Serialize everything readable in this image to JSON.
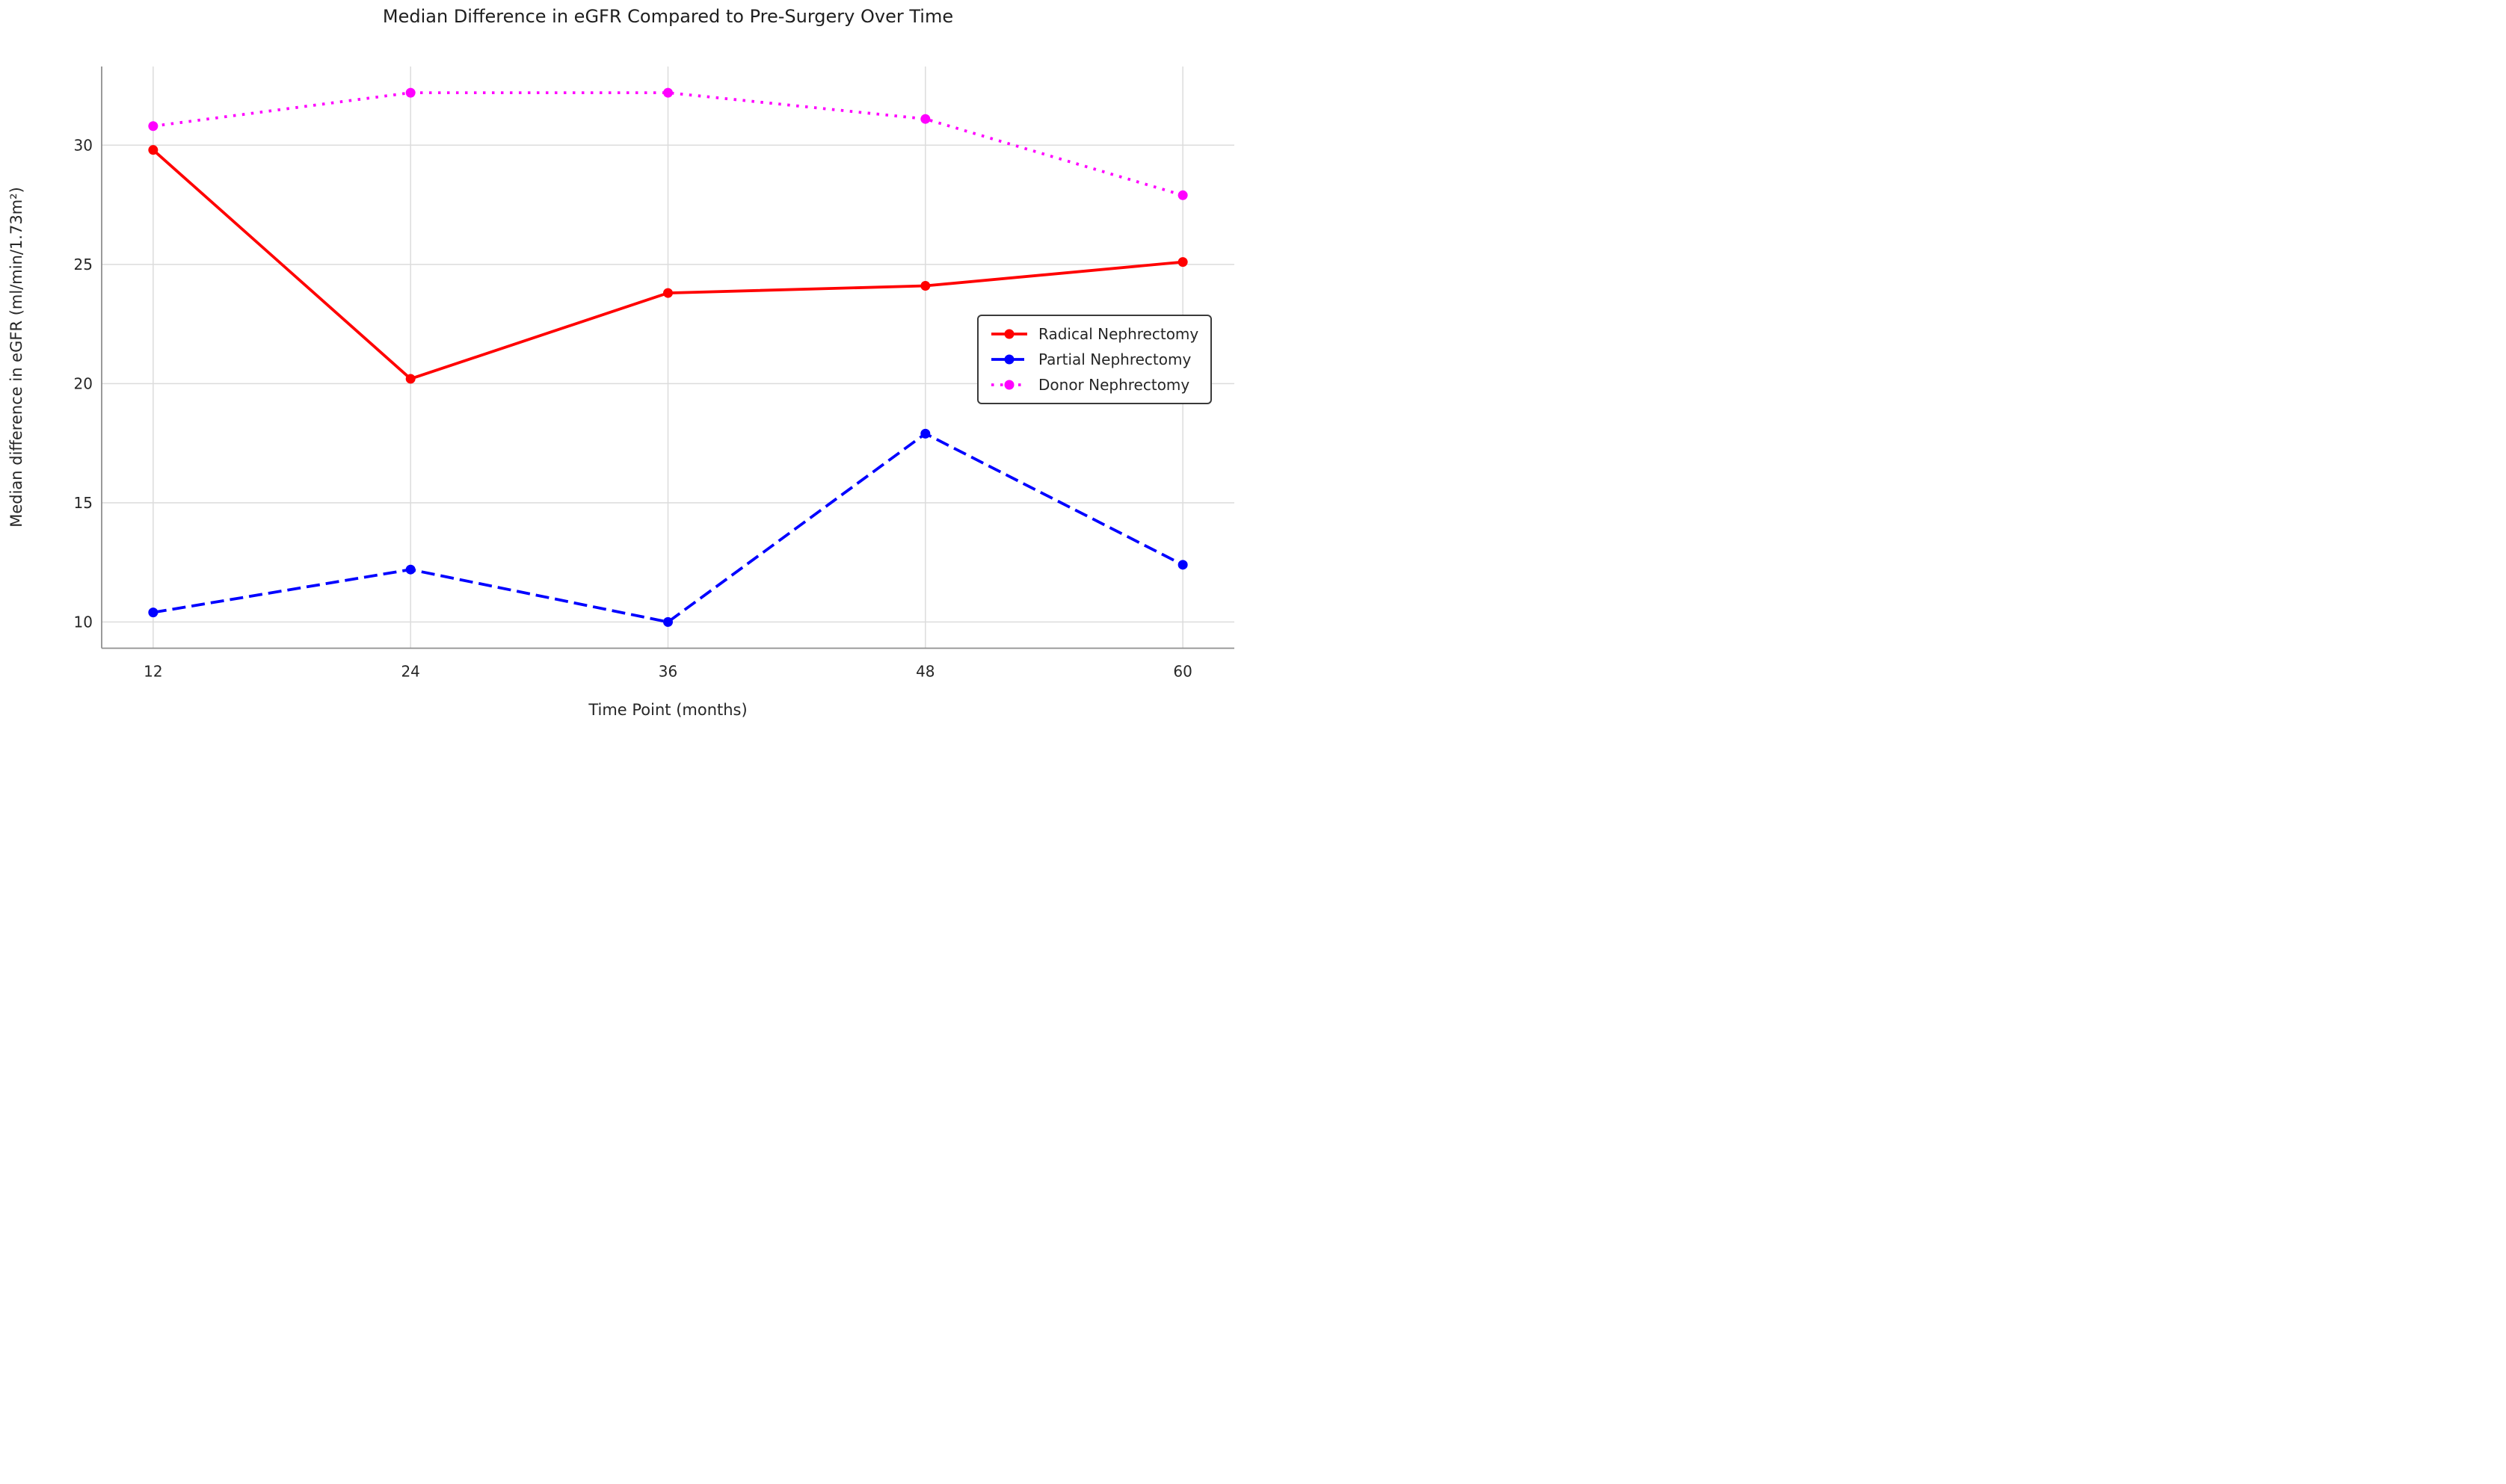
{
  "figure": {
    "title": "Median Difference in eGFR Compared to Pre-Surgery Over Time"
  },
  "chart_data": {
    "type": "line",
    "title": "Median Difference in eGFR Compared to Pre-Surgery Over Time",
    "xlabel": "Time Point (months)",
    "ylabel": "Median difference in eGFR (ml/min/1.73m²)",
    "x": [
      12,
      24,
      36,
      48,
      60
    ],
    "xticks": [
      12,
      24,
      36,
      48,
      60
    ],
    "yticks": [
      10,
      15,
      20,
      25,
      30
    ],
    "xlim": [
      9.6,
      62.4
    ],
    "ylim": [
      8.9,
      33.3
    ],
    "grid": true,
    "legend_position": "center right",
    "series": [
      {
        "name": "Radical Nephrectomy",
        "color": "#ff0000",
        "style": "solid",
        "values": [
          29.8,
          20.2,
          23.8,
          24.1,
          25.1
        ]
      },
      {
        "name": "Partial Nephrectomy",
        "color": "#0000ff",
        "style": "dashed",
        "values": [
          10.4,
          12.2,
          10.0,
          17.9,
          12.4
        ]
      },
      {
        "name": "Donor Nephrectomy",
        "color": "#ff00ff",
        "style": "dotted",
        "values": [
          30.8,
          32.2,
          32.2,
          31.1,
          27.9
        ]
      }
    ],
    "style": {
      "grid_color": "#dcdcdc",
      "spine_color": "#8f8f8f",
      "text_color": "#262626",
      "legend_border_color": "#3a3a3a",
      "background": "#ffffff"
    }
  }
}
